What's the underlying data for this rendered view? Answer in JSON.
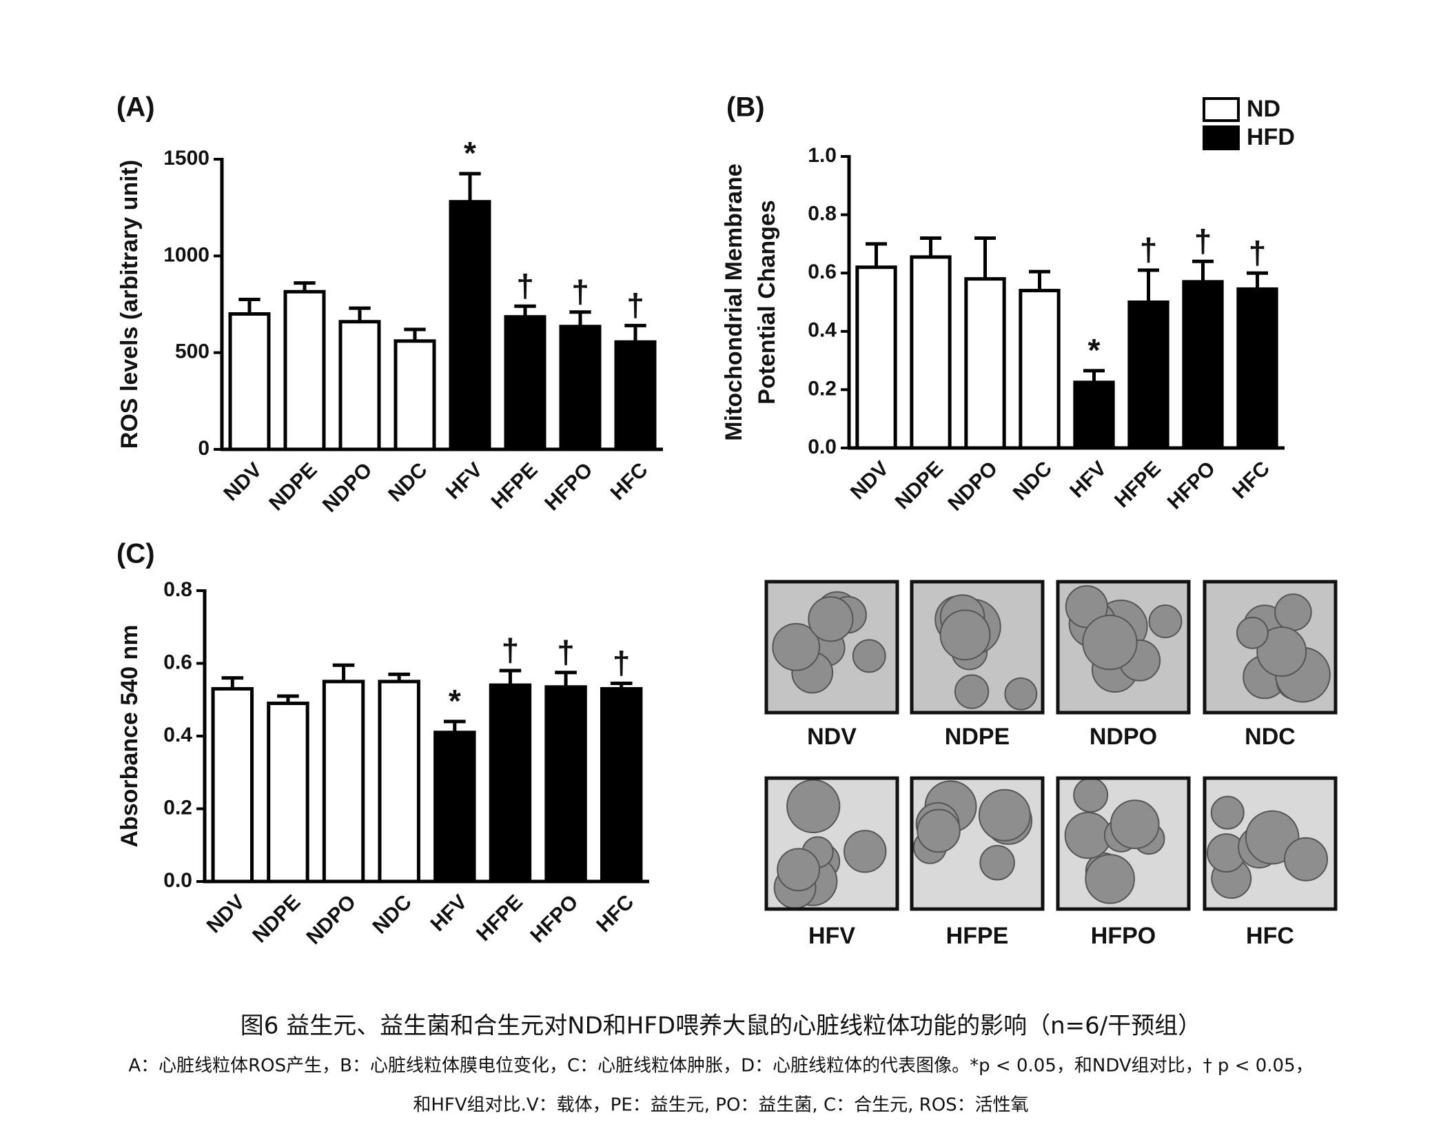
{
  "chart_data": [
    {
      "type": "bar",
      "title": "(A)",
      "ylabel": "ROS levels (arbitrary unit)",
      "categories": [
        "NDV",
        "NDPE",
        "NDPO",
        "NDC",
        "HFV",
        "HFPE",
        "HFPO",
        "HFC"
      ],
      "series": [
        {
          "name": "ND",
          "color": "#ffffff",
          "values": [
            700,
            815,
            660,
            560,
            null,
            null,
            null,
            null
          ],
          "errors": [
            75,
            45,
            70,
            60,
            null,
            null,
            null,
            null
          ]
        },
        {
          "name": "HFD",
          "color": "#000000",
          "values": [
            null,
            null,
            null,
            null,
            1280,
            685,
            635,
            555
          ],
          "errors": [
            null,
            null,
            null,
            null,
            145,
            55,
            75,
            85
          ]
        }
      ],
      "annotations": [
        null,
        null,
        null,
        null,
        "*",
        "†",
        "†",
        "†"
      ],
      "ylim": [
        0,
        1500
      ],
      "yticks": [
        0,
        500,
        1000,
        1500
      ]
    },
    {
      "type": "bar",
      "title": "(B)",
      "ylabel": [
        "Mitochondrial Membrane",
        "Potential Changes"
      ],
      "categories": [
        "NDV",
        "NDPE",
        "NDPO",
        "NDC",
        "HFV",
        "HFPE",
        "HFPO",
        "HFC"
      ],
      "series": [
        {
          "name": "ND",
          "color": "#ffffff",
          "values": [
            0.62,
            0.655,
            0.58,
            0.54,
            null,
            null,
            null,
            null
          ],
          "errors": [
            0.08,
            0.065,
            0.14,
            0.065,
            null,
            null,
            null,
            null
          ]
        },
        {
          "name": "HFD",
          "color": "#000000",
          "values": [
            null,
            null,
            null,
            null,
            0.225,
            0.5,
            0.57,
            0.545
          ],
          "errors": [
            null,
            null,
            null,
            null,
            0.04,
            0.11,
            0.07,
            0.055
          ]
        }
      ],
      "annotations": [
        null,
        null,
        null,
        null,
        "*",
        "†",
        "†",
        "†"
      ],
      "legend": "upper right",
      "ylim": [
        0,
        1
      ],
      "yticks": [
        {
          "value": 0,
          "label": "0.0"
        },
        0.2,
        0.4,
        0.6,
        0.8,
        {
          "value": 1,
          "label": "1.0"
        }
      ]
    },
    {
      "type": "bar",
      "title": "(C)",
      "ylabel": "Absorbance 540 nm",
      "categories": [
        "NDV",
        "NDPE",
        "NDPO",
        "NDC",
        "HFV",
        "HFPE",
        "HFPO",
        "HFC"
      ],
      "series": [
        {
          "name": "ND",
          "color": "#ffffff",
          "values": [
            0.53,
            0.49,
            0.55,
            0.55,
            null,
            null,
            null,
            null
          ],
          "errors": [
            0.03,
            0.02,
            0.045,
            0.02,
            null,
            null,
            null,
            null
          ]
        },
        {
          "name": "HFD",
          "color": "#000000",
          "values": [
            null,
            null,
            null,
            null,
            0.41,
            0.54,
            0.535,
            0.53
          ],
          "errors": [
            null,
            null,
            null,
            null,
            0.03,
            0.04,
            0.04,
            0.015
          ]
        }
      ],
      "annotations": [
        null,
        null,
        null,
        null,
        "*",
        "†",
        "†",
        "†"
      ],
      "ylim": [
        0,
        0.8
      ],
      "yticks": [
        {
          "value": 0,
          "label": "0.0"
        },
        0.2,
        0.4,
        0.6,
        0.8
      ]
    }
  ],
  "micrographs": {
    "labels": [
      "NDV",
      "NDPE",
      "NDPO",
      "NDC",
      "HFV",
      "HFPE",
      "HFPO",
      "HFC"
    ]
  },
  "caption": {
    "title": "图6 益生元、益生菌和合生元对ND和HFD喂养大鼠的心脏线粒体功能的影响（n=6/干预组）",
    "notes": [
      "A：心脏线粒体ROS产生，B：心脏线粒体膜电位变化，C：心脏线粒体肿胀，D：心脏线粒体的代表图像。*p < 0.05，和NDV组对比，† p < 0.05，",
      "和HFV组对比.V：载体，PE：益生元, PO：益生菌, C：合生元, ROS：活性氧"
    ]
  }
}
